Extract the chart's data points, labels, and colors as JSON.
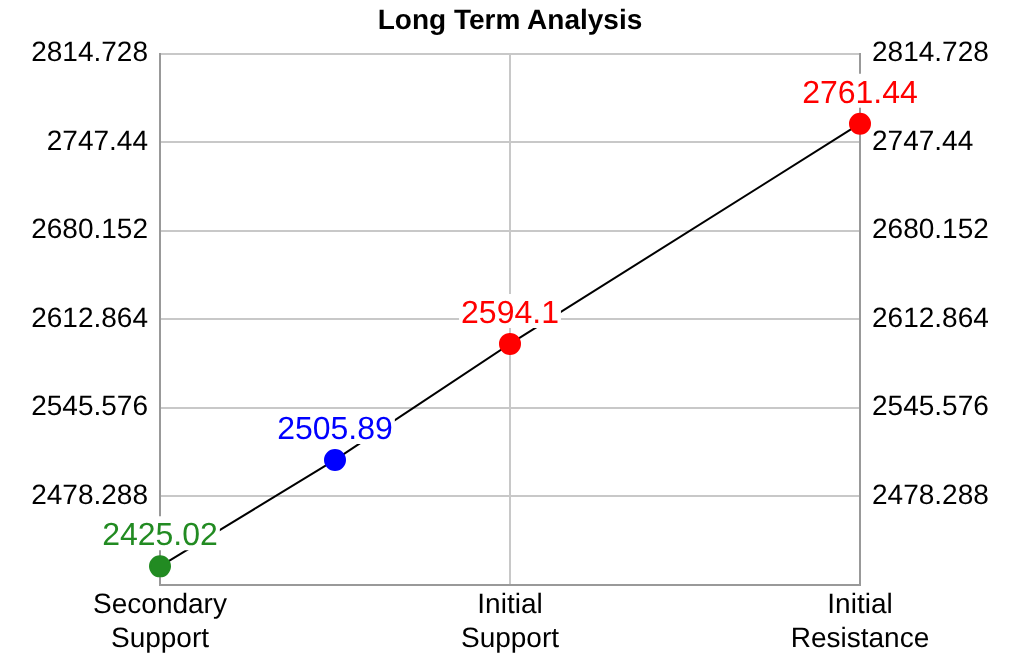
{
  "chart_data": {
    "type": "line",
    "title": "Long Term Analysis",
    "categories": [
      "Secondary Support",
      null,
      "Initial Support",
      null,
      "Initial Resistance"
    ],
    "series": [
      {
        "color": "#000000",
        "colors": [
          "#228b22",
          "#0000ff",
          "#ff0000",
          null,
          "#ff0000"
        ],
        "values": [
          2425.02,
          2505.89,
          2594.1,
          null,
          2761.44
        ]
      }
    ],
    "ylim": [
      2411,
      2814.728
    ],
    "yticks": [
      2478.288,
      2545.576,
      2612.864,
      2680.152,
      2747.44,
      2814.728
    ],
    "y2lim": [
      2411,
      2814.728
    ],
    "y2ticks": [
      2478.288,
      2545.576,
      2612.864,
      2680.152,
      2747.44,
      2814.728
    ],
    "grid": true,
    "marker": "circle",
    "line_style": "solid",
    "data_labels": true
  }
}
